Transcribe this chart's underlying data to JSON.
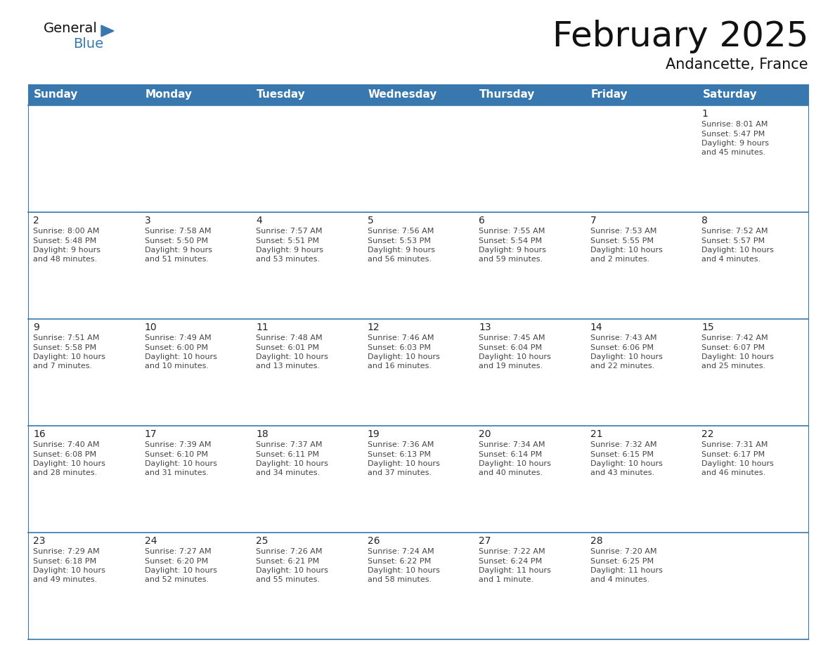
{
  "title": "February 2025",
  "subtitle": "Andancette, France",
  "header_color": "#3878ae",
  "header_text_color": "#ffffff",
  "days_of_week": [
    "Sunday",
    "Monday",
    "Tuesday",
    "Wednesday",
    "Thursday",
    "Friday",
    "Saturday"
  ],
  "background_color": "#ffffff",
  "cell_bg_row0": "#e8eef4",
  "cell_bg_normal": "#ffffff",
  "border_color": "#3878ae",
  "text_color": "#444444",
  "num_color": "#222222",
  "calendar_data": [
    [
      null,
      null,
      null,
      null,
      null,
      null,
      {
        "day": "1",
        "sunrise": "8:01 AM",
        "sunset": "5:47 PM",
        "daylight": "9 hours",
        "daylight2": "and 45 minutes."
      }
    ],
    [
      {
        "day": "2",
        "sunrise": "8:00 AM",
        "sunset": "5:48 PM",
        "daylight": "9 hours",
        "daylight2": "and 48 minutes."
      },
      {
        "day": "3",
        "sunrise": "7:58 AM",
        "sunset": "5:50 PM",
        "daylight": "9 hours",
        "daylight2": "and 51 minutes."
      },
      {
        "day": "4",
        "sunrise": "7:57 AM",
        "sunset": "5:51 PM",
        "daylight": "9 hours",
        "daylight2": "and 53 minutes."
      },
      {
        "day": "5",
        "sunrise": "7:56 AM",
        "sunset": "5:53 PM",
        "daylight": "9 hours",
        "daylight2": "and 56 minutes."
      },
      {
        "day": "6",
        "sunrise": "7:55 AM",
        "sunset": "5:54 PM",
        "daylight": "9 hours",
        "daylight2": "and 59 minutes."
      },
      {
        "day": "7",
        "sunrise": "7:53 AM",
        "sunset": "5:55 PM",
        "daylight": "10 hours",
        "daylight2": "and 2 minutes."
      },
      {
        "day": "8",
        "sunrise": "7:52 AM",
        "sunset": "5:57 PM",
        "daylight": "10 hours",
        "daylight2": "and 4 minutes."
      }
    ],
    [
      {
        "day": "9",
        "sunrise": "7:51 AM",
        "sunset": "5:58 PM",
        "daylight": "10 hours",
        "daylight2": "and 7 minutes."
      },
      {
        "day": "10",
        "sunrise": "7:49 AM",
        "sunset": "6:00 PM",
        "daylight": "10 hours",
        "daylight2": "and 10 minutes."
      },
      {
        "day": "11",
        "sunrise": "7:48 AM",
        "sunset": "6:01 PM",
        "daylight": "10 hours",
        "daylight2": "and 13 minutes."
      },
      {
        "day": "12",
        "sunrise": "7:46 AM",
        "sunset": "6:03 PM",
        "daylight": "10 hours",
        "daylight2": "and 16 minutes."
      },
      {
        "day": "13",
        "sunrise": "7:45 AM",
        "sunset": "6:04 PM",
        "daylight": "10 hours",
        "daylight2": "and 19 minutes."
      },
      {
        "day": "14",
        "sunrise": "7:43 AM",
        "sunset": "6:06 PM",
        "daylight": "10 hours",
        "daylight2": "and 22 minutes."
      },
      {
        "day": "15",
        "sunrise": "7:42 AM",
        "sunset": "6:07 PM",
        "daylight": "10 hours",
        "daylight2": "and 25 minutes."
      }
    ],
    [
      {
        "day": "16",
        "sunrise": "7:40 AM",
        "sunset": "6:08 PM",
        "daylight": "10 hours",
        "daylight2": "and 28 minutes."
      },
      {
        "day": "17",
        "sunrise": "7:39 AM",
        "sunset": "6:10 PM",
        "daylight": "10 hours",
        "daylight2": "and 31 minutes."
      },
      {
        "day": "18",
        "sunrise": "7:37 AM",
        "sunset": "6:11 PM",
        "daylight": "10 hours",
        "daylight2": "and 34 minutes."
      },
      {
        "day": "19",
        "sunrise": "7:36 AM",
        "sunset": "6:13 PM",
        "daylight": "10 hours",
        "daylight2": "and 37 minutes."
      },
      {
        "day": "20",
        "sunrise": "7:34 AM",
        "sunset": "6:14 PM",
        "daylight": "10 hours",
        "daylight2": "and 40 minutes."
      },
      {
        "day": "21",
        "sunrise": "7:32 AM",
        "sunset": "6:15 PM",
        "daylight": "10 hours",
        "daylight2": "and 43 minutes."
      },
      {
        "day": "22",
        "sunrise": "7:31 AM",
        "sunset": "6:17 PM",
        "daylight": "10 hours",
        "daylight2": "and 46 minutes."
      }
    ],
    [
      {
        "day": "23",
        "sunrise": "7:29 AM",
        "sunset": "6:18 PM",
        "daylight": "10 hours",
        "daylight2": "and 49 minutes."
      },
      {
        "day": "24",
        "sunrise": "7:27 AM",
        "sunset": "6:20 PM",
        "daylight": "10 hours",
        "daylight2": "and 52 minutes."
      },
      {
        "day": "25",
        "sunrise": "7:26 AM",
        "sunset": "6:21 PM",
        "daylight": "10 hours",
        "daylight2": "and 55 minutes."
      },
      {
        "day": "26",
        "sunrise": "7:24 AM",
        "sunset": "6:22 PM",
        "daylight": "10 hours",
        "daylight2": "and 58 minutes."
      },
      {
        "day": "27",
        "sunrise": "7:22 AM",
        "sunset": "6:24 PM",
        "daylight": "11 hours",
        "daylight2": "and 1 minute."
      },
      {
        "day": "28",
        "sunrise": "7:20 AM",
        "sunset": "6:25 PM",
        "daylight": "11 hours",
        "daylight2": "and 4 minutes."
      },
      null
    ]
  ],
  "logo_text_general": "General",
  "logo_text_blue": "Blue",
  "logo_triangle_color": "#3878ae",
  "title_fontsize": 36,
  "subtitle_fontsize": 15,
  "header_fontsize": 11,
  "day_num_fontsize": 10,
  "cell_text_fontsize": 8
}
